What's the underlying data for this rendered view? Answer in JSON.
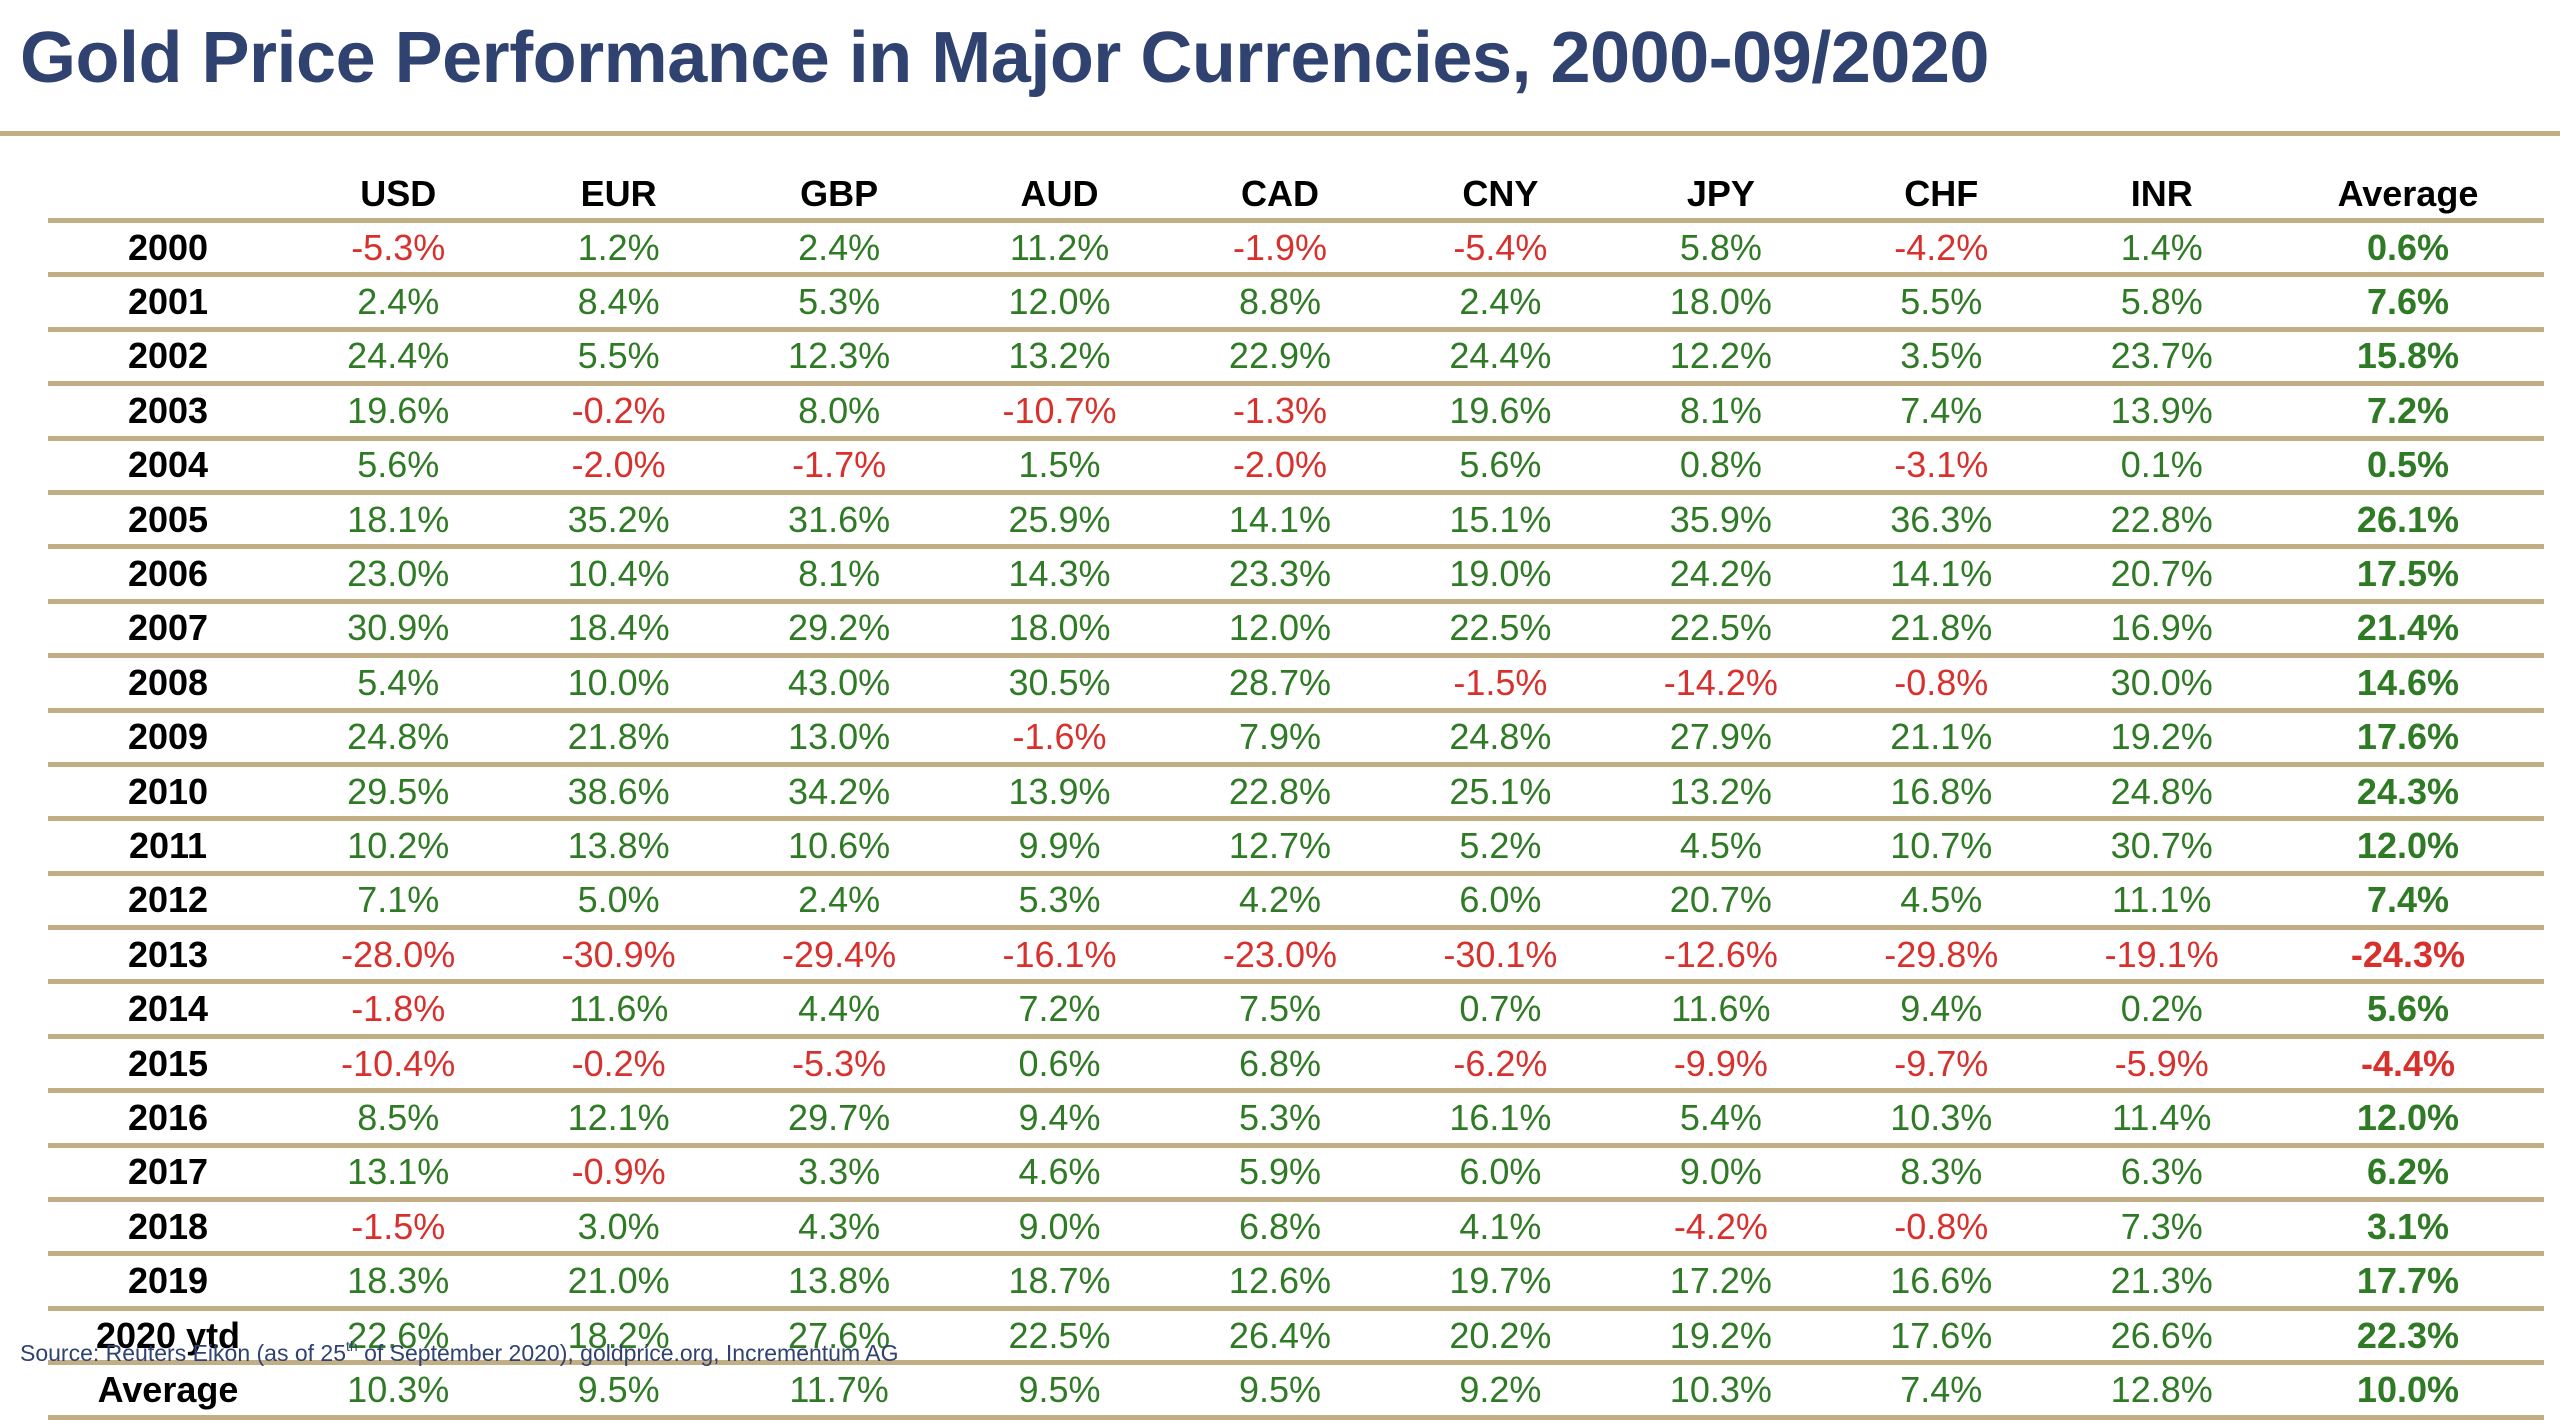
{
  "title": "Gold Price Performance in Major Currencies, 2000-09/2020",
  "colors": {
    "title": "#2f4270",
    "rule": "#c2ae85",
    "positive": "#2f7a25",
    "negative": "#d8312d"
  },
  "table": {
    "columns": [
      "USD",
      "EUR",
      "GBP",
      "AUD",
      "CAD",
      "CNY",
      "JPY",
      "CHF",
      "INR",
      "Average"
    ],
    "rows": [
      {
        "label": "2000",
        "values": [
          "-5.3%",
          "1.2%",
          "2.4%",
          "11.2%",
          "-1.9%",
          "-5.4%",
          "5.8%",
          "-4.2%",
          "1.4%",
          "0.6%"
        ]
      },
      {
        "label": "2001",
        "values": [
          "2.4%",
          "8.4%",
          "5.3%",
          "12.0%",
          "8.8%",
          "2.4%",
          "18.0%",
          "5.5%",
          "5.8%",
          "7.6%"
        ]
      },
      {
        "label": "2002",
        "values": [
          "24.4%",
          "5.5%",
          "12.3%",
          "13.2%",
          "22.9%",
          "24.4%",
          "12.2%",
          "3.5%",
          "23.7%",
          "15.8%"
        ]
      },
      {
        "label": "2003",
        "values": [
          "19.6%",
          "-0.2%",
          "8.0%",
          "-10.7%",
          "-1.3%",
          "19.6%",
          "8.1%",
          "7.4%",
          "13.9%",
          "7.2%"
        ]
      },
      {
        "label": "2004",
        "values": [
          "5.6%",
          "-2.0%",
          "-1.7%",
          "1.5%",
          "-2.0%",
          "5.6%",
          "0.8%",
          "-3.1%",
          "0.1%",
          "0.5%"
        ]
      },
      {
        "label": "2005",
        "values": [
          "18.1%",
          "35.2%",
          "31.6%",
          "25.9%",
          "14.1%",
          "15.1%",
          "35.9%",
          "36.3%",
          "22.8%",
          "26.1%"
        ]
      },
      {
        "label": "2006",
        "values": [
          "23.0%",
          "10.4%",
          "8.1%",
          "14.3%",
          "23.3%",
          "19.0%",
          "24.2%",
          "14.1%",
          "20.7%",
          "17.5%"
        ]
      },
      {
        "label": "2007",
        "values": [
          "30.9%",
          "18.4%",
          "29.2%",
          "18.0%",
          "12.0%",
          "22.5%",
          "22.5%",
          "21.8%",
          "16.9%",
          "21.4%"
        ]
      },
      {
        "label": "2008",
        "values": [
          "5.4%",
          "10.0%",
          "43.0%",
          "30.5%",
          "28.7%",
          "-1.5%",
          "-14.2%",
          "-0.8%",
          "30.0%",
          "14.6%"
        ]
      },
      {
        "label": "2009",
        "values": [
          "24.8%",
          "21.8%",
          "13.0%",
          "-1.6%",
          "7.9%",
          "24.8%",
          "27.9%",
          "21.1%",
          "19.2%",
          "17.6%"
        ]
      },
      {
        "label": "2010",
        "values": [
          "29.5%",
          "38.6%",
          "34.2%",
          "13.9%",
          "22.8%",
          "25.1%",
          "13.2%",
          "16.8%",
          "24.8%",
          "24.3%"
        ]
      },
      {
        "label": "2011",
        "values": [
          "10.2%",
          "13.8%",
          "10.6%",
          "9.9%",
          "12.7%",
          "5.2%",
          "4.5%",
          "10.7%",
          "30.7%",
          "12.0%"
        ]
      },
      {
        "label": "2012",
        "values": [
          "7.1%",
          "5.0%",
          "2.4%",
          "5.3%",
          "4.2%",
          "6.0%",
          "20.7%",
          "4.5%",
          "11.1%",
          "7.4%"
        ]
      },
      {
        "label": "2013",
        "values": [
          "-28.0%",
          "-30.9%",
          "-29.4%",
          "-16.1%",
          "-23.0%",
          "-30.1%",
          "-12.6%",
          "-29.8%",
          "-19.1%",
          "-24.3%"
        ]
      },
      {
        "label": "2014",
        "values": [
          "-1.8%",
          "11.6%",
          "4.4%",
          "7.2%",
          "7.5%",
          "0.7%",
          "11.6%",
          "9.4%",
          "0.2%",
          "5.6%"
        ]
      },
      {
        "label": "2015",
        "values": [
          "-10.4%",
          "-0.2%",
          "-5.3%",
          "0.6%",
          "6.8%",
          "-6.2%",
          "-9.9%",
          "-9.7%",
          "-5.9%",
          "-4.4%"
        ]
      },
      {
        "label": "2016",
        "values": [
          "8.5%",
          "12.1%",
          "29.7%",
          "9.4%",
          "5.3%",
          "16.1%",
          "5.4%",
          "10.3%",
          "11.4%",
          "12.0%"
        ]
      },
      {
        "label": "2017",
        "values": [
          "13.1%",
          "-0.9%",
          "3.3%",
          "4.6%",
          "5.9%",
          "6.0%",
          "9.0%",
          "8.3%",
          "6.3%",
          "6.2%"
        ]
      },
      {
        "label": "2018",
        "values": [
          "-1.5%",
          "3.0%",
          "4.3%",
          "9.0%",
          "6.8%",
          "4.1%",
          "-4.2%",
          "-0.8%",
          "7.3%",
          "3.1%"
        ]
      },
      {
        "label": "2019",
        "values": [
          "18.3%",
          "21.0%",
          "13.8%",
          "18.7%",
          "12.6%",
          "19.7%",
          "17.2%",
          "16.6%",
          "21.3%",
          "17.7%"
        ]
      },
      {
        "label": "2020 ytd",
        "values": [
          "22.6%",
          "18.2%",
          "27.6%",
          "22.5%",
          "26.4%",
          "20.2%",
          "19.2%",
          "17.6%",
          "26.6%",
          "22.3%"
        ]
      },
      {
        "label": "Average",
        "values": [
          "10.3%",
          "9.5%",
          "11.7%",
          "9.5%",
          "9.5%",
          "9.2%",
          "10.3%",
          "7.4%",
          "12.8%",
          "10.0%"
        ]
      }
    ]
  },
  "source": {
    "prefix": "Source: Reuters Eikon (as of 25",
    "superscript": "th",
    "suffix": " of September 2020), goldprice.org, Incrementum AG"
  }
}
